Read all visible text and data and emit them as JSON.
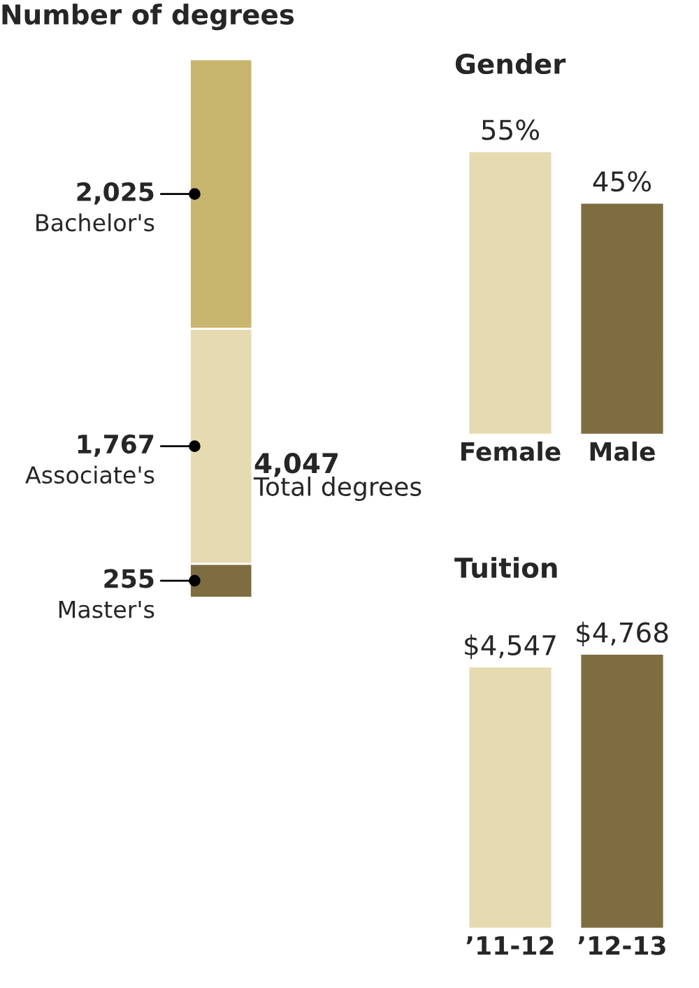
{
  "chart_data": [
    {
      "type": "bar",
      "stacked": true,
      "title": "Number of degrees",
      "categories": [
        null
      ],
      "legend": false,
      "annotations": [
        "4,047",
        "Total degrees"
      ],
      "series": [
        {
          "name": "Master's",
          "color": "#7f6d42",
          "values": [
            255
          ],
          "value_labels": [
            "255"
          ]
        },
        {
          "name": "Associate's",
          "color": "#e6dbb0",
          "values": [
            1767
          ],
          "value_labels": [
            "1,767"
          ]
        },
        {
          "name": "Bachelor's",
          "color": "#c8b56e",
          "values": [
            2025
          ],
          "value_labels": [
            "2,025"
          ]
        }
      ]
    },
    {
      "type": "bar",
      "title": "Gender",
      "categories": [
        "Female",
        "Male"
      ],
      "values": [
        55,
        45
      ],
      "colors": [
        "#e6dbb0",
        "#7f6d42"
      ],
      "value_labels": [
        "55%",
        "45%"
      ]
    },
    {
      "type": "bar",
      "title": "Tuition",
      "categories": [
        "’11-12",
        "’12-13"
      ],
      "values": [
        4547,
        4768
      ],
      "colors": [
        "#e6dbb0",
        "#7f6d42"
      ],
      "value_labels": [
        "$4,547",
        "$4,768"
      ]
    }
  ]
}
